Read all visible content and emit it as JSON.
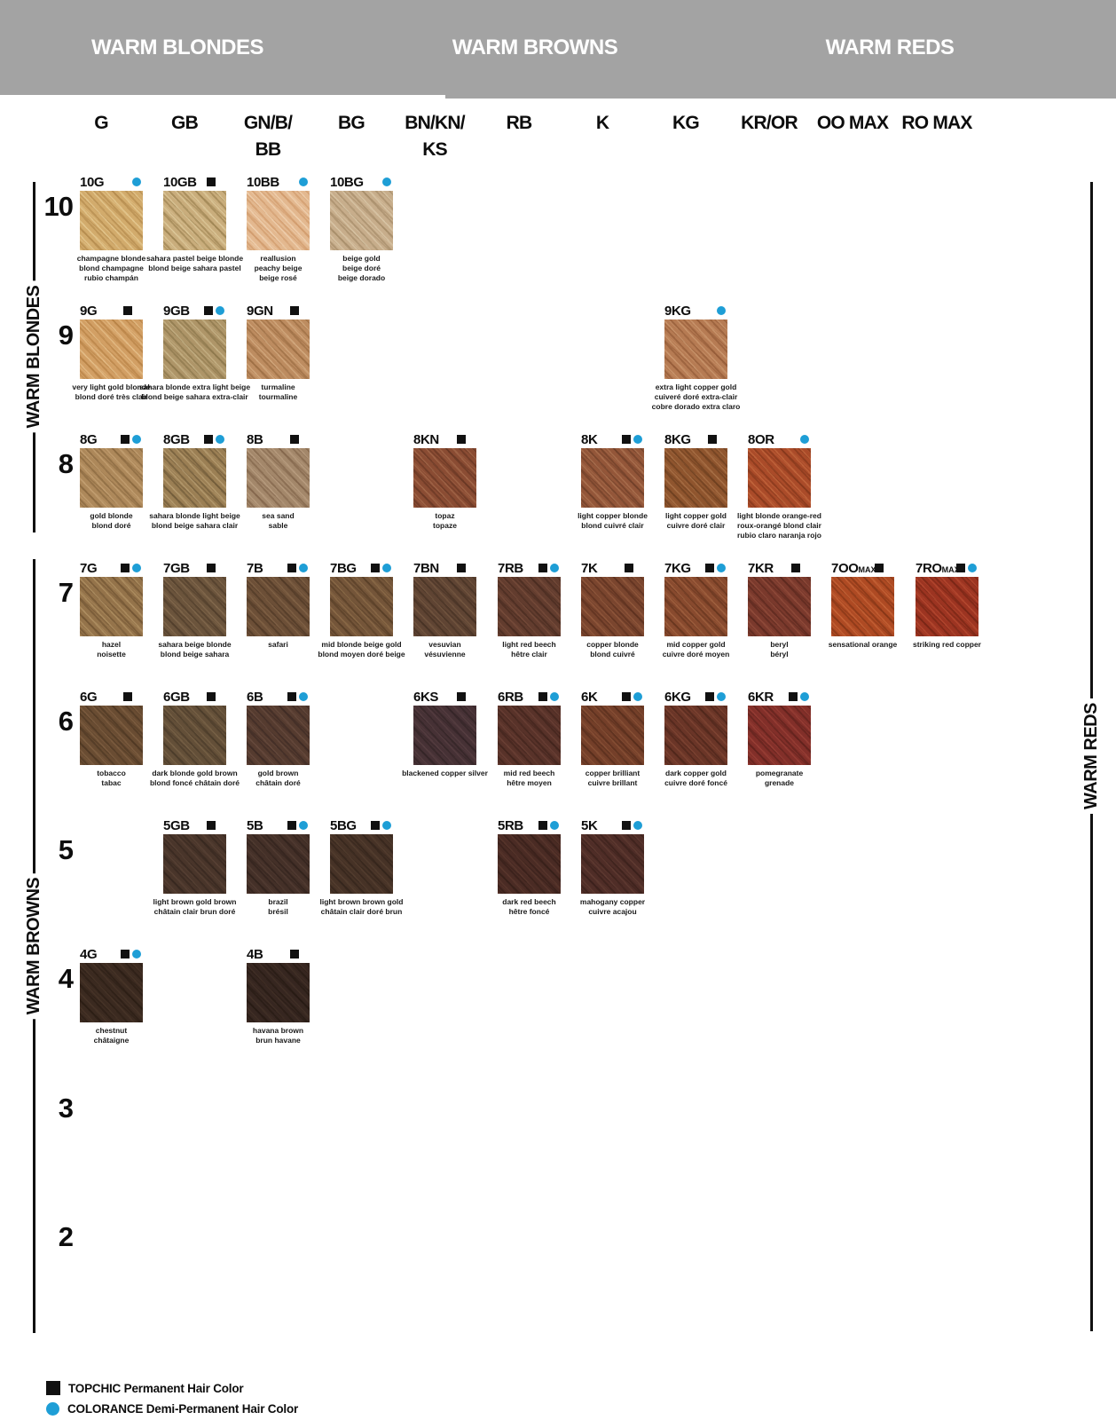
{
  "header": {
    "sections": [
      {
        "label": "WARM BLONDES"
      },
      {
        "label": "WARM BROWNS"
      },
      {
        "label": "WARM REDS"
      }
    ],
    "band_color": "#a3a3a3"
  },
  "columns": [
    {
      "label": "G"
    },
    {
      "label": "GB"
    },
    {
      "label": "GN/B/",
      "label2": "BB"
    },
    {
      "label": "BG"
    },
    {
      "label": "BN/KN/",
      "label2": "KS"
    },
    {
      "label": "RB"
    },
    {
      "label": "K"
    },
    {
      "label": "KG"
    },
    {
      "label": "KR/OR"
    },
    {
      "label": "OO MAX"
    },
    {
      "label": "RO MAX"
    }
  ],
  "side_labels": {
    "left_top": "WARM BLONDES",
    "left_bottom": "WARM BROWNS",
    "right": "WARM REDS"
  },
  "marker_colors": {
    "topchic_square": "#111111",
    "colorance_dot": "#1e9ed6"
  },
  "legend": [
    {
      "marker": "square",
      "label": "TOPCHIC Permanent Hair Color"
    },
    {
      "marker": "dot",
      "label": "COLORANCE Demi-Permanent Hair Color"
    }
  ],
  "grid": {
    "rows": [
      {
        "level": "10",
        "cells": [
          {
            "col": 0,
            "code": "10G",
            "markers": [
              "dot"
            ],
            "name": [
              "champagne blonde",
              "blond champagne",
              "rubio champán"
            ],
            "colors": [
              "#d2ab6c",
              "#ecd49f",
              "#a97f42"
            ]
          },
          {
            "col": 1,
            "code": "10GB",
            "markers": [
              "square"
            ],
            "name": [
              "sahara pastel beige blonde",
              "blond beige sahara pastel"
            ],
            "colors": [
              "#c9ad7c",
              "#e4d3a6",
              "#8d7442"
            ]
          },
          {
            "col": 2,
            "code": "10BB",
            "markers": [
              "dot"
            ],
            "name": [
              "reallusion",
              "peachy beige",
              "beige rosé"
            ],
            "colors": [
              "#e3b88f",
              "#f5ddc0",
              "#c98f5e"
            ]
          },
          {
            "col": 3,
            "code": "10BG",
            "markers": [
              "dot"
            ],
            "name": [
              "beige gold",
              "beige doré",
              "beige dorado"
            ],
            "colors": [
              "#c7ad8b",
              "#e0d0b2",
              "#99805c"
            ]
          }
        ]
      },
      {
        "level": "9",
        "cells": [
          {
            "col": 0,
            "code": "9G",
            "markers": [
              "square"
            ],
            "name": [
              "very light gold blonde",
              "blond doré très clair"
            ],
            "colors": [
              "#d29f64",
              "#ecca96",
              "#ad773a"
            ]
          },
          {
            "col": 1,
            "code": "9GB",
            "markers": [
              "square",
              "dot"
            ],
            "name": [
              "sahara blonde extra light beige",
              "blond beige sahara extra-clair"
            ],
            "colors": [
              "#ae9568",
              "#d0bf94",
              "#7f6b40"
            ]
          },
          {
            "col": 2,
            "code": "9GN",
            "markers": [
              "square"
            ],
            "name": [
              "turmaline",
              "tourmaline"
            ],
            "colors": [
              "#bd8c60",
              "#dcb68c",
              "#8f6238"
            ]
          },
          {
            "col": 7,
            "code": "9KG",
            "markers": [
              "dot"
            ],
            "name": [
              "extra light copper gold",
              "cuiveré doré extra-clair",
              "cobre dorado extra claro"
            ],
            "colors": [
              "#b67b53",
              "#d4a37a",
              "#874f2d"
            ]
          }
        ]
      },
      {
        "level": "8",
        "cells": [
          {
            "col": 0,
            "code": "8G",
            "markers": [
              "square",
              "dot"
            ],
            "name": [
              "gold blonde",
              "blond doré"
            ],
            "colors": [
              "#ad885a",
              "#cdaa7c",
              "#7c5c35"
            ]
          },
          {
            "col": 1,
            "code": "8GB",
            "markers": [
              "square",
              "dot"
            ],
            "name": [
              "sahara blonde light beige",
              "blond beige sahara clair"
            ],
            "colors": [
              "#9b7f54",
              "#c2a87c",
              "#5f4c2e"
            ]
          },
          {
            "col": 2,
            "code": "8B",
            "markers": [
              "square"
            ],
            "name": [
              "sea sand",
              "sable"
            ],
            "colors": [
              "#a3876a",
              "#c1a689",
              "#75583f"
            ]
          },
          {
            "col": 4,
            "code": "8KN",
            "markers": [
              "square"
            ],
            "name": [
              "topaz",
              "topaze"
            ],
            "colors": [
              "#8a4c33",
              "#ad7252",
              "#5a2e1d"
            ]
          },
          {
            "col": 6,
            "code": "8K",
            "markers": [
              "square",
              "dot"
            ],
            "name": [
              "light copper blonde",
              "blond cuivré clair"
            ],
            "colors": [
              "#935639",
              "#b67d5a",
              "#613521"
            ]
          },
          {
            "col": 7,
            "code": "8KG",
            "markers": [
              "square"
            ],
            "name": [
              "light copper gold",
              "cuivre doré clair"
            ],
            "colors": [
              "#8f552e",
              "#b37c50",
              "#5f3619"
            ]
          },
          {
            "col": 8,
            "code": "8OR",
            "markers": [
              "dot"
            ],
            "name": [
              "light blonde orange-red",
              "roux-orangé blond clair",
              "rubio claro naranja rojo"
            ],
            "colors": [
              "#aa4b29",
              "#cc7144",
              "#752f15"
            ]
          }
        ]
      },
      {
        "level": "7",
        "cells": [
          {
            "col": 0,
            "code": "7G",
            "markers": [
              "square",
              "dot"
            ],
            "name": [
              "hazel",
              "noisette"
            ],
            "colors": [
              "#94734a",
              "#bb9c6d",
              "#64492a"
            ]
          },
          {
            "col": 1,
            "code": "7GB",
            "markers": [
              "square"
            ],
            "name": [
              "sahara beige blonde",
              "blond beige sahara"
            ],
            "colors": [
              "#6b543c",
              "#8c7254",
              "#463524"
            ]
          },
          {
            "col": 2,
            "code": "7B",
            "markers": [
              "square",
              "dot"
            ],
            "name": [
              "safari"
            ],
            "colors": [
              "#6c4f37",
              "#8a6a4c",
              "#45301f"
            ]
          },
          {
            "col": 3,
            "code": "7BG",
            "markers": [
              "square",
              "dot"
            ],
            "name": [
              "mid blonde beige gold",
              "blond moyen doré beige"
            ],
            "colors": [
              "#745539",
              "#95744e",
              "#4c351f"
            ]
          },
          {
            "col": 4,
            "code": "7BN",
            "markers": [
              "square"
            ],
            "name": [
              "vesuvian",
              "vésuvienne"
            ],
            "colors": [
              "#5f4433",
              "#7c5e45",
              "#3c2a1e"
            ]
          },
          {
            "col": 5,
            "code": "7RB",
            "markers": [
              "square",
              "dot"
            ],
            "name": [
              "light red beech",
              "hêtre clair"
            ],
            "colors": [
              "#623c2e",
              "#7f523f",
              "#3e241a"
            ]
          },
          {
            "col": 6,
            "code": "7K",
            "markers": [
              "square"
            ],
            "name": [
              "copper blonde",
              "blond cuivré"
            ],
            "colors": [
              "#7a452e",
              "#9b6142",
              "#502818"
            ]
          },
          {
            "col": 7,
            "code": "7KG",
            "markers": [
              "square",
              "dot"
            ],
            "name": [
              "mid copper gold",
              "cuivre doré moyen"
            ],
            "colors": [
              "#884a2e",
              "#aa6a46",
              "#5a2d18"
            ]
          },
          {
            "col": 8,
            "code": "7KR",
            "markers": [
              "square"
            ],
            "name": [
              "beryl",
              "béryl"
            ],
            "colors": [
              "#7a392c",
              "#9a5340",
              "#4e2118"
            ]
          },
          {
            "col": 9,
            "code": "7OO",
            "suffix": "MAX",
            "markers": [
              "square"
            ],
            "name": [
              "sensational orange"
            ],
            "colors": [
              "#ae4a23",
              "#cf6d3e",
              "#742d11"
            ]
          },
          {
            "col": 10,
            "code": "7RO",
            "suffix": "MAX",
            "markers": [
              "square",
              "dot"
            ],
            "name": [
              "striking red copper"
            ],
            "colors": [
              "#9c3421",
              "#c05236",
              "#681f10"
            ]
          }
        ]
      },
      {
        "level": "6",
        "cells": [
          {
            "col": 0,
            "code": "6G",
            "markers": [
              "square"
            ],
            "name": [
              "tobacco",
              "tabac"
            ],
            "colors": [
              "#694c32",
              "#876647",
              "#44301d"
            ]
          },
          {
            "col": 1,
            "code": "6GB",
            "markers": [
              "square"
            ],
            "name": [
              "dark blonde gold brown",
              "blond foncé châtain doré"
            ],
            "colors": [
              "#634f38",
              "#80694c",
              "#403323"
            ]
          },
          {
            "col": 2,
            "code": "6B",
            "markers": [
              "square",
              "dot"
            ],
            "name": [
              "gold brown",
              "châtain doré"
            ],
            "colors": [
              "#553b2f",
              "#6e5042",
              "#352420"
            ]
          },
          {
            "col": 4,
            "code": "6KS",
            "markers": [
              "square"
            ],
            "name": [
              "blackened copper silver"
            ],
            "colors": [
              "#463135",
              "#5d4346",
              "#2b1e20"
            ]
          },
          {
            "col": 5,
            "code": "6RB",
            "markers": [
              "square",
              "dot"
            ],
            "name": [
              "mid red beech",
              "hêtre moyen"
            ],
            "colors": [
              "#583229",
              "#724539",
              "#381e17"
            ]
          },
          {
            "col": 6,
            "code": "6K",
            "markers": [
              "square",
              "dot"
            ],
            "name": [
              "copper brilliant",
              "cuivre brillant"
            ],
            "colors": [
              "#743f29",
              "#91583b",
              "#4b2616"
            ]
          },
          {
            "col": 7,
            "code": "6KG",
            "markers": [
              "square",
              "dot"
            ],
            "name": [
              "dark copper gold",
              "cuivre doré foncé"
            ],
            "colors": [
              "#6a3527",
              "#884b37",
              "#432015"
            ]
          },
          {
            "col": 8,
            "code": "6KR",
            "markers": [
              "square",
              "dot"
            ],
            "name": [
              "pomegranate",
              "grenade"
            ],
            "colors": [
              "#822f29",
              "#a2453a",
              "#531c17"
            ]
          }
        ]
      },
      {
        "level": "5",
        "cells": [
          {
            "col": 1,
            "code": "5GB",
            "markers": [
              "square"
            ],
            "name": [
              "light brown gold brown",
              "châtain clair brun doré"
            ],
            "colors": [
              "#49352a",
              "#5e4638",
              "#2e211a"
            ]
          },
          {
            "col": 2,
            "code": "5B",
            "markers": [
              "square",
              "dot"
            ],
            "name": [
              "brazil",
              "brésil"
            ],
            "colors": [
              "#443028",
              "#584136",
              "#2a1d17"
            ]
          },
          {
            "col": 3,
            "code": "5BG",
            "markers": [
              "square",
              "dot"
            ],
            "name": [
              "light brown brown gold",
              "châtain clair doré brun"
            ],
            "colors": [
              "#463226",
              "#5a4333",
              "#2c1f17"
            ]
          },
          {
            "col": 5,
            "code": "5RB",
            "markers": [
              "square",
              "dot"
            ],
            "name": [
              "dark red beech",
              "hêtre foncé"
            ],
            "colors": [
              "#4a2b24",
              "#603b30",
              "#2e1a14"
            ]
          },
          {
            "col": 6,
            "code": "5K",
            "markers": [
              "square",
              "dot"
            ],
            "name": [
              "mahogany copper",
              "cuivre acajou"
            ],
            "colors": [
              "#4f2d27",
              "#674036",
              "#321b16"
            ]
          }
        ]
      },
      {
        "level": "4",
        "cells": [
          {
            "col": 0,
            "code": "4G",
            "markers": [
              "square",
              "dot"
            ],
            "name": [
              "chestnut",
              "châtaigne"
            ],
            "colors": [
              "#3b2a20",
              "#4d392b",
              "#24180f"
            ]
          },
          {
            "col": 2,
            "code": "4B",
            "markers": [
              "square"
            ],
            "name": [
              "havana brown",
              "brun havane"
            ],
            "colors": [
              "#362620",
              "#473429",
              "#20150e"
            ]
          }
        ]
      },
      {
        "level": "3",
        "cells": []
      },
      {
        "level": "2",
        "cells": []
      }
    ]
  }
}
